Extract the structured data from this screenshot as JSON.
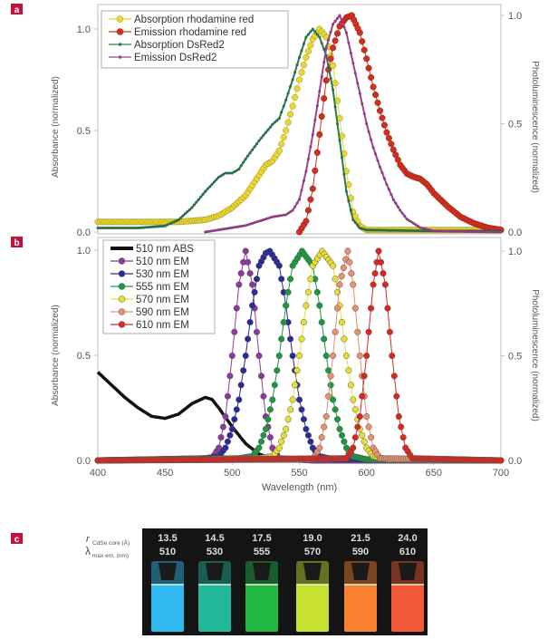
{
  "chart_data": [
    {
      "panel_label": "a",
      "type": "line",
      "xlabel": "",
      "ylabel_left": "Absorbance (normalized)",
      "ylabel_right": "Photoluminescence (normalized)",
      "xlim": [
        400,
        700
      ],
      "ylim_left": [
        0,
        1.0
      ],
      "ylim_right": [
        0,
        1.0
      ],
      "yticks_left": [
        "0.0",
        "0.5",
        "1.0"
      ],
      "yticks_right": [
        "0.0",
        "0.5",
        "1.0"
      ],
      "grid": false,
      "legend_placement": "top-left",
      "series": [
        {
          "name": "Absorption rhodamine red",
          "axis": "left",
          "color": "#e8d830",
          "edge": "#9a8a20",
          "marker": "large",
          "points": [
            [
              400,
              0.05
            ],
            [
              420,
              0.05
            ],
            [
              440,
              0.05
            ],
            [
              460,
              0.05
            ],
            [
              480,
              0.06
            ],
            [
              490,
              0.08
            ],
            [
              500,
              0.12
            ],
            [
              510,
              0.18
            ],
            [
              520,
              0.28
            ],
            [
              525,
              0.33
            ],
            [
              530,
              0.35
            ],
            [
              535,
              0.4
            ],
            [
              540,
              0.5
            ],
            [
              545,
              0.62
            ],
            [
              550,
              0.75
            ],
            [
              555,
              0.86
            ],
            [
              560,
              0.95
            ],
            [
              565,
              1.0
            ],
            [
              570,
              0.96
            ],
            [
              575,
              0.82
            ],
            [
              580,
              0.56
            ],
            [
              585,
              0.3
            ],
            [
              590,
              0.1
            ],
            [
              595,
              0.03
            ],
            [
              600,
              0.01
            ],
            [
              620,
              0.01
            ],
            [
              650,
              0.01
            ],
            [
              680,
              0.01
            ],
            [
              700,
              0.01
            ]
          ]
        },
        {
          "name": "Emission rhodamine red",
          "axis": "right",
          "color": "#d03020",
          "edge": "#902010",
          "marker": "large",
          "points": [
            [
              550,
              0.0
            ],
            [
              555,
              0.05
            ],
            [
              560,
              0.2
            ],
            [
              565,
              0.45
            ],
            [
              570,
              0.7
            ],
            [
              575,
              0.85
            ],
            [
              580,
              0.95
            ],
            [
              585,
              0.99
            ],
            [
              589,
              1.0
            ],
            [
              595,
              0.92
            ],
            [
              600,
              0.8
            ],
            [
              605,
              0.67
            ],
            [
              610,
              0.56
            ],
            [
              615,
              0.46
            ],
            [
              620,
              0.38
            ],
            [
              625,
              0.31
            ],
            [
              630,
              0.27
            ],
            [
              635,
              0.255
            ],
            [
              640,
              0.245
            ],
            [
              645,
              0.22
            ],
            [
              650,
              0.18
            ],
            [
              655,
              0.15
            ],
            [
              660,
              0.12
            ],
            [
              665,
              0.095
            ],
            [
              670,
              0.07
            ],
            [
              675,
              0.055
            ],
            [
              680,
              0.04
            ],
            [
              685,
              0.03
            ],
            [
              690,
              0.02
            ],
            [
              695,
              0.015
            ],
            [
              700,
              0.01
            ]
          ]
        },
        {
          "name": "Absorption DsRed2",
          "axis": "left",
          "color": "#2a7a50",
          "edge": "#1a5a38",
          "marker": "small",
          "points": [
            [
              400,
              0.02
            ],
            [
              430,
              0.02
            ],
            [
              450,
              0.03
            ],
            [
              460,
              0.06
            ],
            [
              470,
              0.12
            ],
            [
              480,
              0.2
            ],
            [
              490,
              0.27
            ],
            [
              495,
              0.29
            ],
            [
              500,
              0.29
            ],
            [
              505,
              0.31
            ],
            [
              510,
              0.36
            ],
            [
              520,
              0.45
            ],
            [
              530,
              0.53
            ],
            [
              535,
              0.56
            ],
            [
              540,
              0.65
            ],
            [
              545,
              0.75
            ],
            [
              550,
              0.86
            ],
            [
              555,
              0.96
            ],
            [
              560,
              1.0
            ],
            [
              565,
              0.96
            ],
            [
              570,
              0.87
            ],
            [
              575,
              0.7
            ],
            [
              580,
              0.45
            ],
            [
              585,
              0.2
            ],
            [
              590,
              0.06
            ],
            [
              595,
              0.02
            ],
            [
              600,
              0.01
            ],
            [
              650,
              0.005
            ],
            [
              700,
              0.005
            ]
          ]
        },
        {
          "name": "Emission DsRed2",
          "axis": "right",
          "color": "#a04090",
          "edge": "#703068",
          "marker": "small",
          "points": [
            [
              480,
              0.0
            ],
            [
              500,
              0.02
            ],
            [
              510,
              0.03
            ],
            [
              520,
              0.05
            ],
            [
              530,
              0.07
            ],
            [
              540,
              0.08
            ],
            [
              545,
              0.1
            ],
            [
              550,
              0.15
            ],
            [
              555,
              0.28
            ],
            [
              560,
              0.45
            ],
            [
              565,
              0.65
            ],
            [
              570,
              0.85
            ],
            [
              575,
              0.96
            ],
            [
              580,
              1.0
            ],
            [
              585,
              0.92
            ],
            [
              590,
              0.78
            ],
            [
              595,
              0.64
            ],
            [
              600,
              0.5
            ],
            [
              605,
              0.39
            ],
            [
              610,
              0.3
            ],
            [
              615,
              0.22
            ],
            [
              620,
              0.15
            ],
            [
              625,
              0.1
            ],
            [
              630,
              0.06
            ],
            [
              640,
              0.02
            ],
            [
              650,
              0.005
            ],
            [
              700,
              0.0
            ]
          ]
        }
      ]
    },
    {
      "panel_label": "b",
      "type": "line",
      "xlabel": "Wavelength (nm)",
      "ylabel_left": "Absorbance (normalized)",
      "ylabel_right": "Photoluminescence (normalized)",
      "xlim": [
        400,
        700
      ],
      "xticks": [
        "400",
        "450",
        "500",
        "550",
        "600",
        "650",
        "700"
      ],
      "ylim_left": [
        0,
        1.0
      ],
      "ylim_right": [
        0,
        1.0
      ],
      "yticks_left": [
        "0.0",
        "0.5",
        "1.0"
      ],
      "yticks_right": [
        "0.0",
        "0.5",
        "1.0"
      ],
      "grid": false,
      "legend_placement": "top-left",
      "series": [
        {
          "name": "510 nm ABS",
          "axis": "left",
          "color": "#111111",
          "marker": "none",
          "points": [
            [
              400,
              0.42
            ],
            [
              410,
              0.36
            ],
            [
              420,
              0.3
            ],
            [
              430,
              0.25
            ],
            [
              440,
              0.21
            ],
            [
              450,
              0.2
            ],
            [
              460,
              0.22
            ],
            [
              470,
              0.27
            ],
            [
              480,
              0.3
            ],
            [
              485,
              0.29
            ],
            [
              490,
              0.25
            ],
            [
              500,
              0.16
            ],
            [
              510,
              0.08
            ],
            [
              520,
              0.03
            ],
            [
              530,
              0.01
            ],
            [
              540,
              0.0
            ],
            [
              560,
              0.0
            ]
          ]
        },
        {
          "name": "510 nm EM",
          "axis": "right",
          "color": "#8a3a9a",
          "marker": "large",
          "points": [
            [
              400,
              0
            ],
            [
              485,
              0.01
            ],
            [
              490,
              0.06
            ],
            [
              495,
              0.21
            ],
            [
              500,
              0.5
            ],
            [
              505,
              0.84
            ],
            [
              510,
              1.0
            ],
            [
              515,
              0.84
            ],
            [
              520,
              0.5
            ],
            [
              525,
              0.21
            ],
            [
              530,
              0.06
            ],
            [
              535,
              0.01
            ],
            [
              560,
              0
            ],
            [
              700,
              0
            ]
          ]
        },
        {
          "name": "530 nm EM",
          "axis": "right",
          "color": "#2a2a9a",
          "marker": "large",
          "points": [
            [
              400,
              0
            ],
            [
              480,
              0.01
            ],
            [
              490,
              0.02
            ],
            [
              495,
              0.06
            ],
            [
              500,
              0.15
            ],
            [
              505,
              0.29
            ],
            [
              510,
              0.5
            ],
            [
              515,
              0.74
            ],
            [
              520,
              0.93
            ],
            [
              525,
              0.99
            ],
            [
              528,
              1.0
            ],
            [
              535,
              0.93
            ],
            [
              540,
              0.74
            ],
            [
              545,
              0.5
            ],
            [
              550,
              0.29
            ],
            [
              555,
              0.15
            ],
            [
              560,
              0.06
            ],
            [
              565,
              0.02
            ],
            [
              575,
              0.005
            ],
            [
              700,
              0
            ]
          ]
        },
        {
          "name": "555 nm EM",
          "axis": "right",
          "color": "#1a9a40",
          "marker": "large",
          "points": [
            [
              400,
              0
            ],
            [
              505,
              0.01
            ],
            [
              515,
              0.02
            ],
            [
              520,
              0.06
            ],
            [
              525,
              0.15
            ],
            [
              530,
              0.29
            ],
            [
              535,
              0.5
            ],
            [
              540,
              0.74
            ],
            [
              545,
              0.93
            ],
            [
              552,
              1.0
            ],
            [
              560,
              0.93
            ],
            [
              565,
              0.74
            ],
            [
              570,
              0.5
            ],
            [
              575,
              0.29
            ],
            [
              580,
              0.15
            ],
            [
              585,
              0.06
            ],
            [
              590,
              0.02
            ],
            [
              600,
              0.005
            ],
            [
              700,
              0
            ]
          ]
        },
        {
          "name": "570 nm EM",
          "axis": "right",
          "color": "#e8e030",
          "marker": "large",
          "points": [
            [
              400,
              0
            ],
            [
              520,
              0.01
            ],
            [
              530,
              0.02
            ],
            [
              535,
              0.06
            ],
            [
              540,
              0.15
            ],
            [
              545,
              0.29
            ],
            [
              550,
              0.5
            ],
            [
              555,
              0.74
            ],
            [
              560,
              0.93
            ],
            [
              567,
              1.0
            ],
            [
              575,
              0.93
            ],
            [
              580,
              0.74
            ],
            [
              585,
              0.5
            ],
            [
              590,
              0.29
            ],
            [
              595,
              0.15
            ],
            [
              600,
              0.06
            ],
            [
              605,
              0.02
            ],
            [
              615,
              0.005
            ],
            [
              700,
              0
            ]
          ]
        },
        {
          "name": "590 nm EM",
          "axis": "right",
          "color": "#e89070",
          "marker": "large",
          "points": [
            [
              400,
              0
            ],
            [
              560,
              0.005
            ],
            [
              565,
              0.06
            ],
            [
              570,
              0.21
            ],
            [
              575,
              0.5
            ],
            [
              580,
              0.84
            ],
            [
              586,
              1.0
            ],
            [
              590,
              0.84
            ],
            [
              595,
              0.5
            ],
            [
              600,
              0.21
            ],
            [
              605,
              0.06
            ],
            [
              610,
              0.01
            ],
            [
              700,
              0
            ]
          ]
        },
        {
          "name": "610 nm EM",
          "axis": "right",
          "color": "#d82820",
          "marker": "large",
          "points": [
            [
              400,
              0
            ],
            [
              585,
              0.01
            ],
            [
              590,
              0.06
            ],
            [
              595,
              0.21
            ],
            [
              600,
              0.5
            ],
            [
              605,
              0.84
            ],
            [
              609,
              1.0
            ],
            [
              614,
              0.84
            ],
            [
              619,
              0.5
            ],
            [
              624,
              0.21
            ],
            [
              629,
              0.06
            ],
            [
              634,
              0.01
            ],
            [
              700,
              0
            ]
          ]
        }
      ]
    }
  ],
  "panel_c": {
    "panel_label": "c",
    "row1_label": "r",
    "row1_sub": "CdSe core (Å)",
    "row2_label": "λ",
    "row2_sub": "max em. (nm)",
    "vials": [
      {
        "radius": "13.5",
        "lambda": "510",
        "color": "#30b8f0"
      },
      {
        "radius": "14.5",
        "lambda": "530",
        "color": "#20b898"
      },
      {
        "radius": "17.5",
        "lambda": "555",
        "color": "#20b840"
      },
      {
        "radius": "19.0",
        "lambda": "570",
        "color": "#c8e030"
      },
      {
        "radius": "21.5",
        "lambda": "590",
        "color": "#f88030"
      },
      {
        "radius": "24.0",
        "lambda": "610",
        "color": "#f05838"
      }
    ]
  },
  "colors": {
    "panel_label_bg": "#c0143c",
    "axis": "#c8c8c8"
  }
}
